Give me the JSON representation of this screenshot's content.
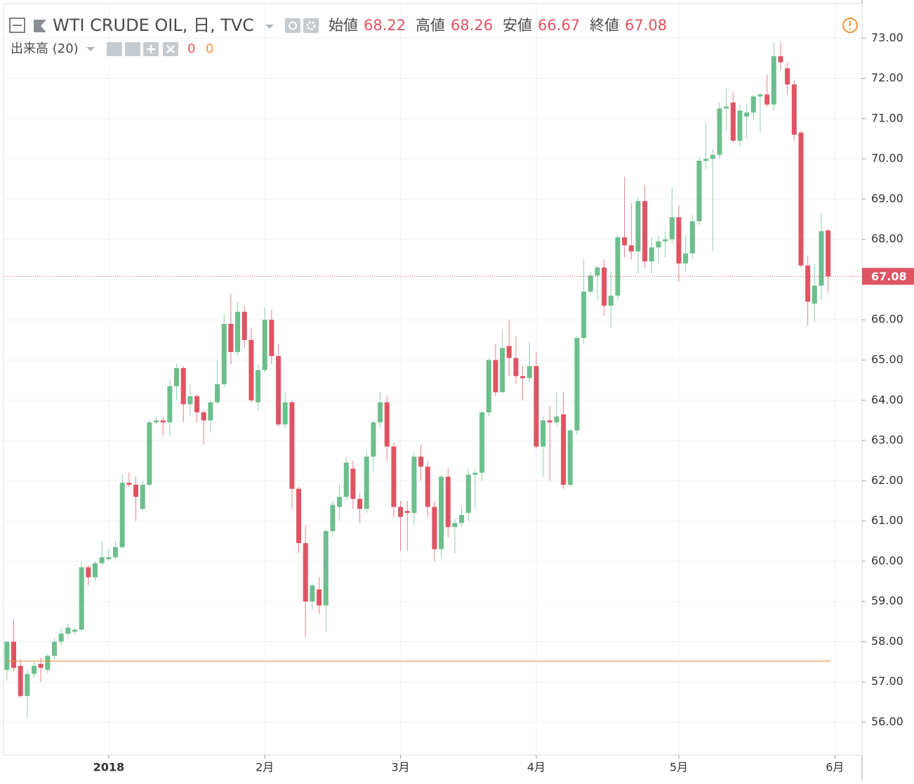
{
  "chart_data": {
    "type": "candlestick",
    "title": "WTI CRUDE OIL, 日, TVC",
    "legend_labels": [
      "始値",
      "高値",
      "安値",
      "終値"
    ],
    "up_color": "#6cbf8c",
    "down_color": "#df5462",
    "open": [
      57.3,
      58.0,
      57.4,
      56.65,
      57.2,
      57.45,
      57.3,
      57.65,
      58.0,
      58.2,
      58.25,
      58.3,
      59.85,
      59.6,
      59.95,
      60.05,
      60.1,
      60.35,
      61.95,
      61.9,
      61.3,
      61.9,
      63.45,
      63.5,
      63.45,
      64.35,
      64.8,
      63.9,
      64.1,
      63.7,
      63.5,
      63.95,
      64.4,
      65.9,
      65.2,
      66.2,
      65.5,
      63.95,
      64.75,
      66.0,
      65.1,
      63.4,
      63.95,
      61.8,
      60.45,
      59.0,
      59.3,
      58.9,
      60.75,
      61.35,
      61.6,
      62.3,
      61.55,
      61.3,
      62.6,
      63.45,
      63.95,
      62.85,
      61.35,
      61.25,
      61.2,
      62.6,
      62.35,
      61.35,
      60.3,
      62.1,
      60.85,
      60.95,
      61.2,
      62.15,
      62.2,
      63.7,
      65.0,
      64.2,
      65.35,
      65.05,
      64.6,
      64.55,
      64.85,
      62.85,
      63.5,
      63.45,
      63.65,
      61.9,
      63.25,
      65.55,
      66.7,
      67.1,
      67.3,
      66.35,
      66.6,
      68.05,
      67.85,
      67.7,
      68.95,
      67.45,
      67.8,
      67.95,
      68.0,
      68.55,
      67.4,
      67.65,
      68.45,
      69.95,
      70.0,
      70.1,
      71.25,
      71.4,
      70.45,
      71.05,
      71.15,
      71.55,
      71.6,
      71.35,
      72.55,
      72.25,
      71.85,
      70.65,
      67.35,
      66.4,
      66.85,
      68.22
    ],
    "high": [
      58.0,
      58.55,
      57.55,
      57.3,
      57.5,
      57.6,
      57.7,
      58.1,
      58.35,
      58.45,
      58.35,
      60.0,
      59.9,
      60.0,
      60.5,
      60.3,
      60.5,
      62.15,
      62.2,
      62.1,
      62.0,
      63.5,
      63.6,
      63.6,
      64.5,
      64.9,
      64.85,
      64.4,
      64.15,
      63.75,
      64.0,
      65.0,
      66.15,
      66.65,
      66.45,
      66.35,
      65.8,
      64.9,
      66.3,
      66.25,
      65.4,
      64.2,
      64.0,
      61.85,
      60.9,
      59.45,
      59.6,
      60.8,
      61.5,
      61.9,
      62.6,
      62.5,
      61.7,
      62.75,
      63.5,
      64.2,
      64.1,
      62.95,
      61.5,
      61.5,
      62.7,
      62.9,
      62.5,
      61.5,
      62.15,
      62.3,
      61.05,
      61.35,
      62.3,
      62.3,
      63.75,
      65.05,
      65.4,
      65.75,
      66.0,
      65.6,
      64.85,
      65.45,
      65.2,
      63.6,
      63.85,
      64.2,
      64.2,
      63.3,
      65.6,
      67.5,
      67.2,
      67.35,
      67.5,
      67.2,
      68.1,
      69.55,
      68.9,
      69.05,
      69.35,
      68.05,
      68.1,
      68.2,
      69.3,
      68.85,
      68.1,
      68.6,
      70.05,
      70.9,
      70.25,
      71.4,
      71.75,
      71.65,
      71.35,
      71.35,
      71.6,
      71.65,
      72.1,
      72.9,
      72.9,
      72.4,
      71.95,
      70.7,
      67.6,
      67.4,
      68.65,
      68.26
    ],
    "low": [
      57.05,
      57.25,
      56.6,
      56.1,
      57.1,
      57.0,
      57.2,
      57.55,
      57.9,
      58.1,
      58.2,
      58.25,
      59.4,
      59.5,
      59.9,
      60.0,
      60.05,
      60.3,
      61.85,
      61.0,
      61.25,
      61.85,
      63.4,
      63.1,
      63.1,
      64.0,
      63.45,
      63.6,
      63.45,
      62.9,
      63.2,
      63.9,
      64.3,
      64.9,
      65.1,
      65.3,
      63.95,
      63.75,
      64.7,
      64.9,
      63.35,
      63.3,
      61.3,
      60.2,
      58.1,
      58.8,
      58.7,
      58.25,
      60.6,
      61.0,
      61.5,
      61.3,
      60.95,
      61.2,
      62.2,
      63.3,
      62.5,
      61.1,
      60.25,
      60.25,
      60.9,
      62.0,
      61.1,
      60.0,
      60.1,
      60.6,
      60.2,
      60.85,
      61.0,
      61.3,
      62.0,
      63.6,
      64.1,
      64.2,
      64.6,
      64.4,
      64.0,
      64.45,
      62.8,
      62.1,
      62.0,
      63.35,
      61.8,
      61.85,
      63.15,
      65.4,
      66.65,
      66.5,
      66.1,
      65.8,
      66.5,
      67.55,
      67.5,
      67.15,
      67.3,
      67.15,
      67.4,
      67.55,
      67.9,
      66.95,
      67.2,
      67.5,
      68.35,
      69.75,
      67.7,
      70.0,
      70.7,
      70.4,
      70.3,
      70.5,
      70.95,
      70.65,
      71.3,
      71.2,
      72.2,
      71.6,
      70.45,
      67.3,
      65.85,
      65.95,
      66.5,
      66.67
    ],
    "close": [
      58.0,
      57.35,
      56.65,
      57.2,
      57.4,
      57.35,
      57.65,
      58.0,
      58.2,
      58.35,
      58.3,
      59.85,
      59.6,
      59.95,
      60.1,
      60.1,
      60.35,
      61.95,
      61.9,
      61.6,
      61.9,
      63.45,
      63.5,
      63.45,
      64.35,
      64.8,
      63.9,
      64.1,
      63.7,
      63.5,
      63.95,
      64.4,
      65.9,
      65.2,
      66.2,
      65.5,
      64.0,
      64.75,
      66.0,
      65.1,
      63.4,
      63.95,
      61.8,
      60.45,
      59.0,
      59.4,
      58.9,
      60.75,
      61.4,
      61.6,
      62.45,
      61.55,
      61.3,
      62.6,
      63.45,
      63.95,
      62.85,
      61.35,
      61.1,
      61.2,
      62.6,
      62.35,
      61.35,
      60.3,
      62.1,
      60.85,
      60.95,
      61.15,
      62.15,
      62.2,
      63.7,
      65.0,
      64.2,
      65.3,
      65.05,
      64.6,
      64.55,
      64.85,
      62.85,
      63.5,
      63.45,
      63.6,
      61.9,
      63.25,
      65.55,
      66.7,
      67.1,
      67.3,
      66.35,
      66.6,
      68.05,
      67.85,
      67.7,
      68.95,
      67.45,
      67.8,
      67.95,
      68.0,
      68.55,
      67.4,
      67.65,
      68.45,
      69.95,
      70.0,
      70.1,
      71.25,
      71.3,
      70.45,
      71.2,
      71.15,
      71.55,
      71.6,
      71.35,
      72.55,
      72.4,
      71.85,
      70.6,
      67.35,
      66.45,
      66.85,
      68.2,
      67.08
    ],
    "xlim": [
      -0.5,
      126
    ],
    "xticks": [
      {
        "value": 15,
        "label": "2018"
      },
      {
        "value": 38,
        "label": "2月"
      },
      {
        "value": 58,
        "label": "3月"
      },
      {
        "value": 78,
        "label": "4月"
      },
      {
        "value": 99,
        "label": "5月"
      },
      {
        "value": 122,
        "label": "6月"
      }
    ],
    "ylim": [
      55.18,
      73.86
    ],
    "yticks": [
      {
        "value": 56,
        "label": "56.00"
      },
      {
        "value": 57,
        "label": "57.00"
      },
      {
        "value": 58,
        "label": "58.00"
      },
      {
        "value": 59,
        "label": "59.00"
      },
      {
        "value": 60,
        "label": "60.00"
      },
      {
        "value": 61,
        "label": "61.00"
      },
      {
        "value": 62,
        "label": "62.00"
      },
      {
        "value": 63,
        "label": "63.00"
      },
      {
        "value": 64,
        "label": "64.00"
      },
      {
        "value": 65,
        "label": "65.00"
      },
      {
        "value": 66,
        "label": "66.00"
      },
      {
        "value": 67,
        "label": "67.00"
      },
      {
        "value": 68,
        "label": "68.00"
      },
      {
        "value": 69,
        "label": "69.00"
      },
      {
        "value": 70,
        "label": "70.00"
      },
      {
        "value": 71,
        "label": "71.00"
      },
      {
        "value": 72,
        "label": "72.00"
      },
      {
        "value": 73,
        "label": "73.00"
      }
    ],
    "grid": true,
    "volume": {
      "label": "出来高 (20)",
      "values": [
        0,
        0
      ],
      "colors": [
        "#df5462",
        "#f0913a"
      ]
    }
  }
}
